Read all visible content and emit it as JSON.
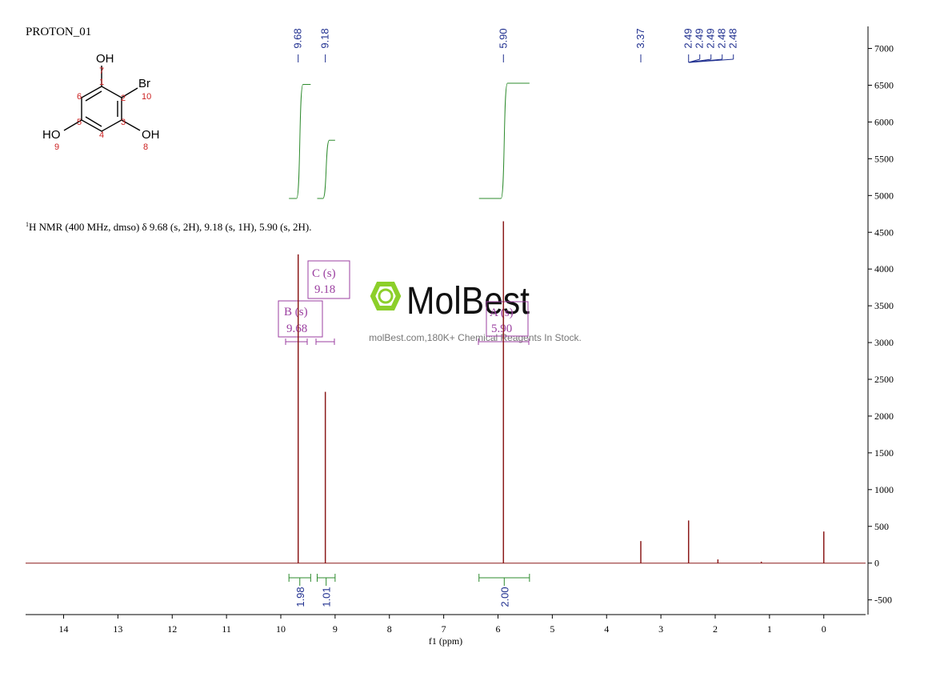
{
  "chart_data": {
    "type": "nmr",
    "title": "PROTON_01",
    "description": "H NMR (400 MHz, dmso) δ 9.68 (s, 2H), 9.18 (s, 1H), 5.90 (s, 2H).",
    "description_superscript": "1",
    "xlabel": "f1 (ppm)",
    "xlim": [
      14.7,
      -0.77
    ],
    "ylim": [
      -700,
      7300
    ],
    "xticks": [
      14,
      13,
      12,
      11,
      10,
      9,
      8,
      7,
      6,
      5,
      4,
      3,
      2,
      1,
      0
    ],
    "yticks": [
      -500,
      0,
      500,
      1000,
      1500,
      2000,
      2500,
      3000,
      3500,
      4000,
      4500,
      5000,
      5500,
      6000,
      6500,
      7000
    ],
    "peaks": {
      "x": [
        9.68,
        9.18,
        5.9,
        3.37,
        2.49,
        1.95,
        1.15,
        0
      ],
      "values": [
        4200,
        2330,
        4650,
        300,
        580,
        50,
        20,
        430
      ]
    },
    "peak_labels": [
      {
        "value": 9.68,
        "label": "9.68"
      },
      {
        "value": 9.18,
        "label": "9.18"
      },
      {
        "value": 5.9,
        "label": "5.90"
      },
      {
        "value": 3.37,
        "label": "3.37"
      },
      {
        "value": 2.49,
        "label": "2.49"
      },
      {
        "value": 2.49,
        "label": "2.49"
      },
      {
        "value": 2.49,
        "label": "2.49"
      },
      {
        "value": 2.48,
        "label": "2.48"
      },
      {
        "value": 2.48,
        "label": "2.48"
      }
    ],
    "integrals": {
      "ranges": [
        [
          9.85,
          9.45
        ],
        [
          9.33,
          9.0
        ],
        [
          6.35,
          5.42
        ]
      ],
      "values": [
        1.98,
        1.01,
        2
      ],
      "value_labels": [
        "1.98",
        "1.01",
        "2.00"
      ]
    },
    "multiplets": [
      {
        "name": "B (s)",
        "shift": "9.68"
      },
      {
        "name": "C (s)",
        "shift": "9.18"
      },
      {
        "name": "A (s)",
        "shift": "5.90"
      }
    ],
    "structure": {
      "atoms": [
        "OH",
        "Br",
        "HO",
        "OH"
      ],
      "numbers": [
        "7",
        "1",
        "2",
        "10",
        "6",
        "5",
        "3",
        "4",
        "9",
        "8"
      ]
    },
    "watermark": {
      "brand": "MolBest",
      "tagline": "molBest.com,180K+ Chemical Reagents In Stock."
    },
    "spectrum_color": "#8b1a1a",
    "integral_color": "#2e8b2e",
    "label_color": "#1f2f8f",
    "multiplet_color": "#9b3fa0"
  }
}
